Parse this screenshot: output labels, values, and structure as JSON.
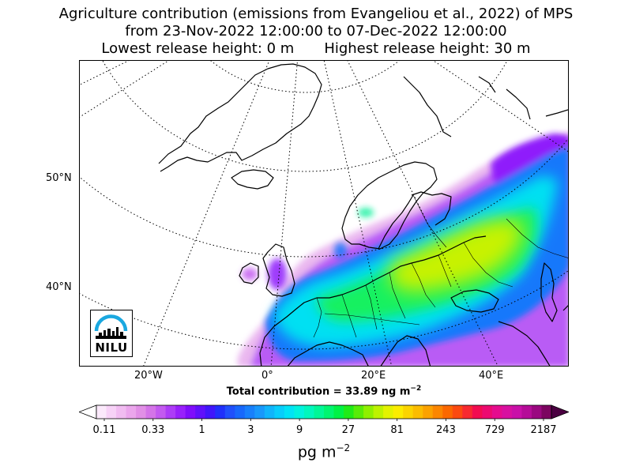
{
  "title": {
    "line1": "Agriculture contribution (emissions from Evangeliou et al., 2022) of MPS",
    "line2": "from 23-Nov-2022 12:00:00 to 07-Dec-2022 12:00:00",
    "lowest": "Lowest release height: 0 m",
    "highest": "Highest release height: 30 m"
  },
  "map": {
    "lat_labels": [
      "50°N",
      "40°N"
    ],
    "lon_labels": [
      "20°W",
      "0°",
      "20°E",
      "40°E"
    ],
    "gridlines": "dotted",
    "projection": "polar-stereographic"
  },
  "total": {
    "prefix": "Total contribution = 33.89 ng m",
    "exponent": "−2"
  },
  "colorbar": {
    "tick_labels": [
      "0.11",
      "0.33",
      "1",
      "3",
      "9",
      "27",
      "81",
      "243",
      "729",
      "2187"
    ],
    "unit_prefix": "pg m",
    "unit_exponent": "−2",
    "colors": [
      "#fbe9fb",
      "#f7d2f7",
      "#f1bcf1",
      "#eba6ec",
      "#e18fe6",
      "#d474e8",
      "#c35af0",
      "#ad3cf7",
      "#9820fb",
      "#7f0dfb",
      "#6010fb",
      "#4016fb",
      "#2030fb",
      "#2050fb",
      "#1868fb",
      "#1880fb",
      "#1898fb",
      "#10b4fb",
      "#08cdfb",
      "#00e3f5",
      "#00f2de",
      "#00f7bd",
      "#00f797",
      "#00f570",
      "#00f245",
      "#20eb18",
      "#58ec08",
      "#8ff000",
      "#bdf200",
      "#e3f200",
      "#fbec00",
      "#fbd400",
      "#fbbc00",
      "#fba200",
      "#fb8600",
      "#fb6800",
      "#fb4a10",
      "#f72a30",
      "#f20c50",
      "#ec0a70",
      "#e50c8e",
      "#d810a0",
      "#c910a8",
      "#b50c98",
      "#9a0880",
      "#7c0560"
    ]
  },
  "logo": {
    "text": "NILU",
    "arc_color": "#1aa8e0"
  }
}
